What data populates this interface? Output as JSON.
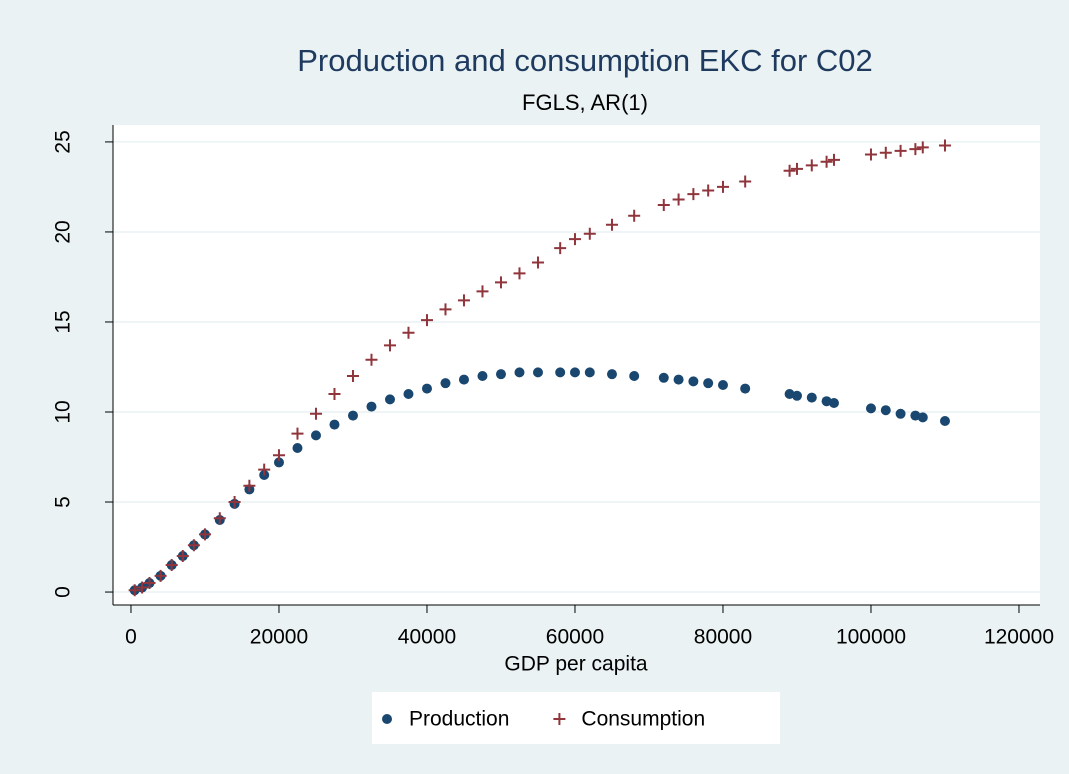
{
  "chart_data": {
    "type": "scatter",
    "title": "Production and consumption EKC for C02",
    "subtitle": "FGLS, AR(1)",
    "x_label": "GDP per capita",
    "x": [
      500,
      1500,
      2500,
      4000,
      5500,
      7000,
      8500,
      10000,
      12000,
      14000,
      16000,
      18000,
      20000,
      22500,
      25000,
      27500,
      30000,
      32500,
      35000,
      37500,
      40000,
      42500,
      45000,
      47500,
      50000,
      52500,
      55000,
      58000,
      60000,
      62000,
      65000,
      68000,
      72000,
      74000,
      76000,
      78000,
      80000,
      83000,
      89000,
      90000,
      92000,
      94000,
      95000,
      100000,
      102000,
      104000,
      106000,
      107000,
      110000
    ],
    "series": [
      {
        "name": "Production",
        "color": "#1a476f",
        "marker": "circle",
        "values": [
          0.1,
          0.25,
          0.5,
          0.9,
          1.5,
          2.0,
          2.6,
          3.2,
          4.0,
          4.9,
          5.7,
          6.5,
          7.2,
          8.0,
          8.7,
          9.3,
          9.8,
          10.3,
          10.7,
          11.0,
          11.3,
          11.6,
          11.8,
          12.0,
          12.1,
          12.2,
          12.2,
          12.2,
          12.2,
          12.2,
          12.1,
          12.0,
          11.9,
          11.8,
          11.7,
          11.6,
          11.5,
          11.3,
          11.0,
          10.9,
          10.8,
          10.6,
          10.5,
          10.2,
          10.1,
          9.9,
          9.8,
          9.7,
          9.5
        ]
      },
      {
        "name": "Consumption",
        "color": "#90353b",
        "marker": "plus",
        "values": [
          0.1,
          0.25,
          0.5,
          0.9,
          1.5,
          2.0,
          2.6,
          3.2,
          4.1,
          5.0,
          5.9,
          6.8,
          7.6,
          8.8,
          9.9,
          11.0,
          12.0,
          12.9,
          13.7,
          14.4,
          15.1,
          15.7,
          16.2,
          16.7,
          17.2,
          17.7,
          18.3,
          19.1,
          19.6,
          19.9,
          20.4,
          20.9,
          21.5,
          21.8,
          22.1,
          22.3,
          22.5,
          22.8,
          23.4,
          23.5,
          23.7,
          23.9,
          24.0,
          24.3,
          24.4,
          24.5,
          24.6,
          24.7,
          24.8
        ]
      }
    ],
    "xlim": [
      -2430,
      122840
    ],
    "xticks": [
      0,
      20000,
      40000,
      60000,
      80000,
      100000,
      120000
    ],
    "ylim": [
      -0.72,
      25.94
    ],
    "yticks": [
      0,
      5,
      10,
      15,
      20,
      25
    ],
    "grid": true,
    "legend": "bottom"
  }
}
